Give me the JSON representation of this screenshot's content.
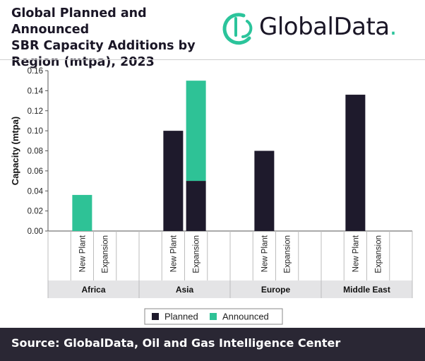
{
  "header": {
    "title": "Global Planned and Announced\nSBR Capacity Additions by\nRegion (mtpa), 2023",
    "logo_text": "GlobalData",
    "logo_dot": "."
  },
  "footer": {
    "source": "Source: GlobalData, Oil and Gas Intelligence Center"
  },
  "colors": {
    "planned": "#1e1a2c",
    "announced": "#2ec296",
    "band": "#e4e4e6",
    "brand_green": "#2bc49b"
  },
  "chart_data": {
    "type": "bar",
    "stacked": true,
    "ylabel": "Capacity (mtpa)",
    "ylim": [
      0,
      0.16
    ],
    "yticks": [
      "0.00",
      "0.02",
      "0.04",
      "0.06",
      "0.08",
      "0.10",
      "0.12",
      "0.14",
      "0.16"
    ],
    "grid": false,
    "legend_position": "bottom",
    "groups": [
      {
        "region": "Africa",
        "categories": [
          "New Plant",
          "Expansion"
        ]
      },
      {
        "region": "Asia",
        "categories": [
          "New Plant",
          "Expansion"
        ]
      },
      {
        "region": "Europe",
        "categories": [
          "New Plant",
          "Expansion"
        ]
      },
      {
        "region": "Middle East",
        "categories": [
          "New Plant",
          "Expansion"
        ]
      }
    ],
    "series": [
      {
        "name": "Planned",
        "values": [
          [
            0,
            0
          ],
          [
            0.1,
            0.05
          ],
          [
            0.08,
            0
          ],
          [
            0.136,
            0
          ]
        ]
      },
      {
        "name": "Announced",
        "values": [
          [
            0.036,
            0
          ],
          [
            0,
            0.1
          ],
          [
            0,
            0
          ],
          [
            0,
            0
          ]
        ]
      }
    ]
  }
}
